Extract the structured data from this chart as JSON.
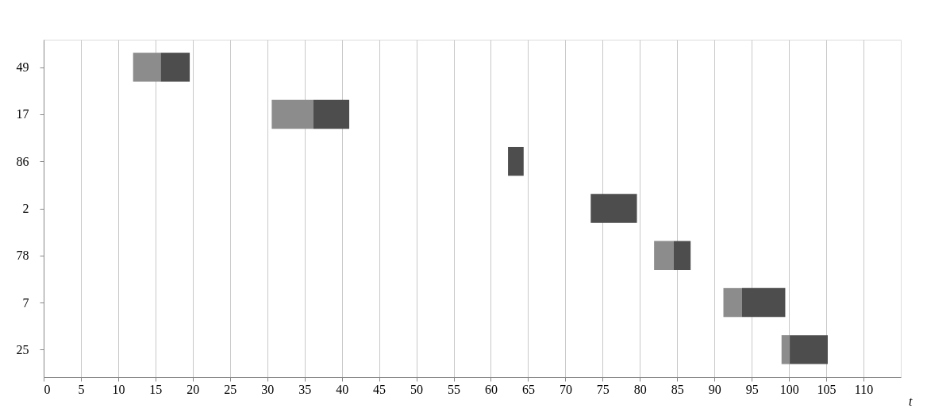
{
  "chart_data": {
    "type": "bar",
    "orientation": "horizontal",
    "xlabel": "t",
    "categories": [
      "49",
      "17",
      "86",
      "2",
      "78",
      "7",
      "25"
    ],
    "series": [
      {
        "color": "#8c8c8c",
        "base": [
          12.0,
          30.6,
          null,
          null,
          81.9,
          91.2,
          99.0
        ],
        "values": [
          3.7,
          5.6,
          null,
          null,
          2.6,
          2.5,
          1.1
        ]
      },
      {
        "color": "#4d4d4d",
        "base": [
          15.7,
          36.2,
          62.3,
          73.4,
          84.5,
          93.7,
          100.1
        ],
        "values": [
          3.9,
          4.8,
          2.1,
          6.2,
          2.3,
          5.8,
          5.1
        ]
      }
    ],
    "xlim": [
      0,
      115
    ],
    "xticks": [
      0,
      5,
      10,
      15,
      20,
      25,
      30,
      35,
      40,
      45,
      50,
      55,
      60,
      65,
      70,
      75,
      80,
      85,
      90,
      95,
      100,
      105,
      110
    ],
    "grid": "x"
  }
}
